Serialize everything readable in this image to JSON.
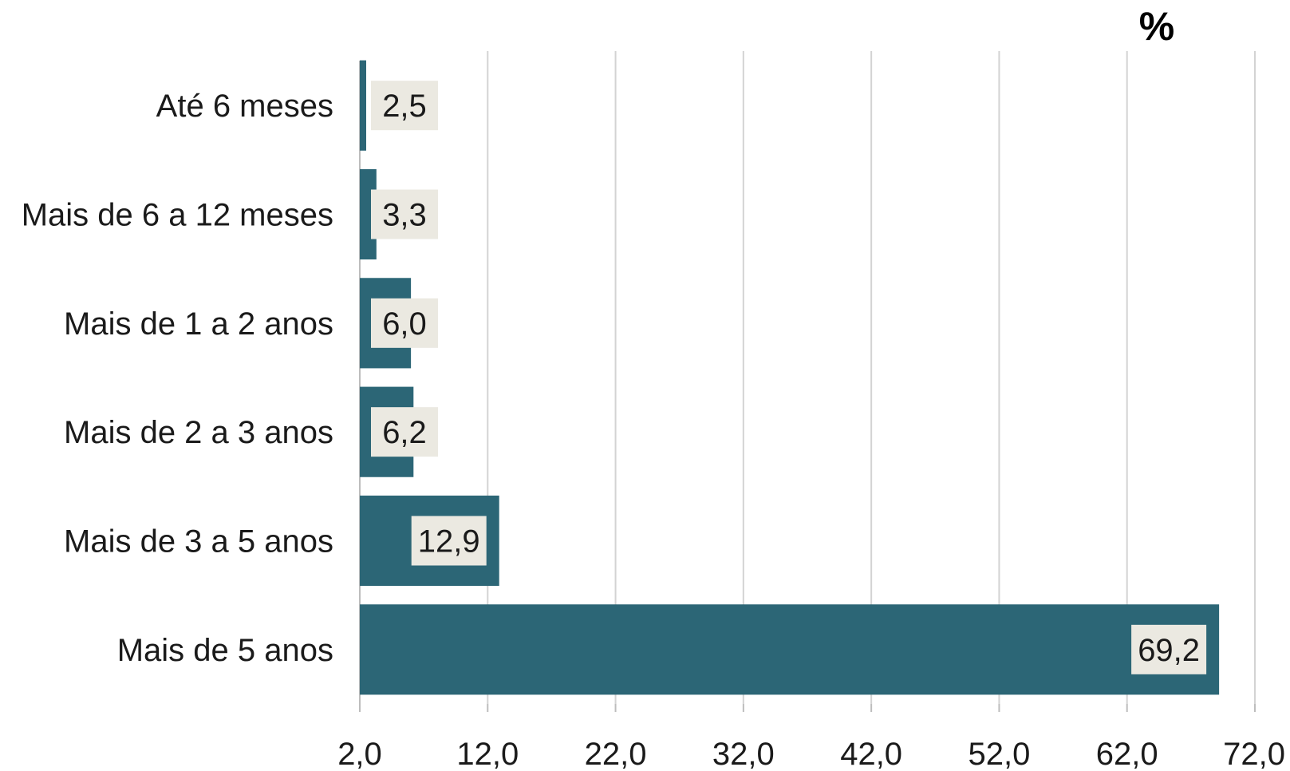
{
  "chart_data": {
    "type": "bar",
    "orientation": "horizontal",
    "unit_label": "%",
    "categories": [
      "Até 6 meses",
      "Mais de 6 a 12 meses",
      "Mais de 1 a 2 anos",
      "Mais de 2 a 3 anos",
      "Mais de 3 a 5 anos",
      "Mais de 5 anos"
    ],
    "values": [
      2.5,
      3.3,
      6.0,
      6.2,
      12.9,
      69.2
    ],
    "value_labels": [
      "2,5",
      "3,3",
      "6,0",
      "6,2",
      "12,9",
      "69,2"
    ],
    "xlim": [
      2.0,
      72.0
    ],
    "x_ticks": [
      2.0,
      12.0,
      22.0,
      32.0,
      42.0,
      52.0,
      62.0,
      72.0
    ],
    "x_tick_labels": [
      "2,0",
      "12,0",
      "22,0",
      "32,0",
      "42,0",
      "52,0",
      "62,0",
      "72,0"
    ],
    "grid": "vertical",
    "legend": "none",
    "colors": {
      "bar": "#2c6676",
      "label_box": "#ebe9e1",
      "grid": "#d3d3d3",
      "axis": "#bdbdbd"
    }
  }
}
